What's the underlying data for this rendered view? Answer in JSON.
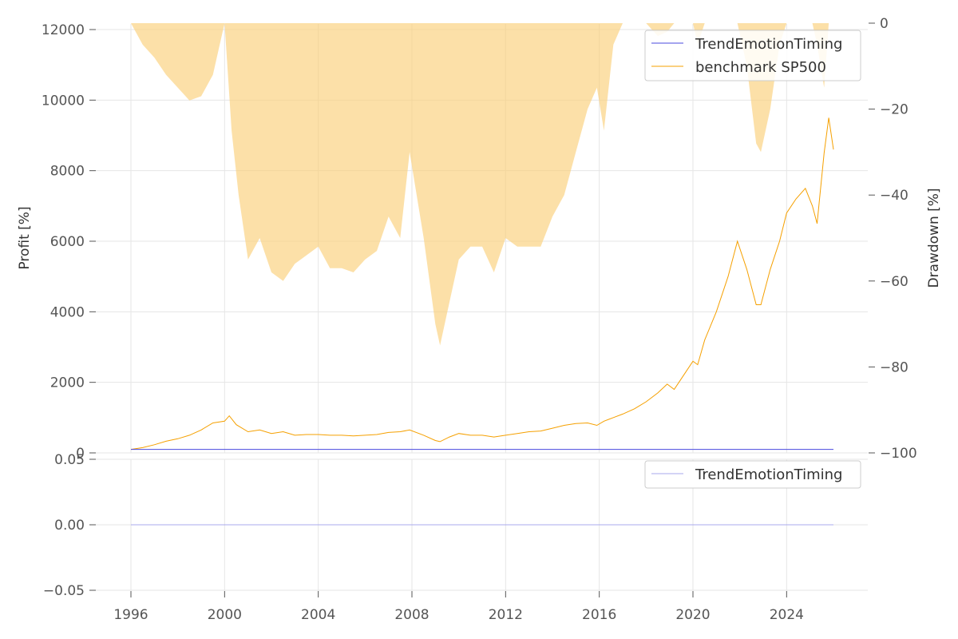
{
  "chart_data": [
    {
      "type": "line",
      "panel": "profit",
      "ylabel": "Profit [%]",
      "xlim": [
        1996,
        2026
      ],
      "ylim": [
        0,
        12000
      ],
      "x_ticks": [
        "1996",
        "2000",
        "2004",
        "2008",
        "2012",
        "2016",
        "2020",
        "2024"
      ],
      "y_ticks": [
        "0",
        "2000",
        "4000",
        "6000",
        "8000",
        "10000",
        "12000"
      ],
      "grid": true,
      "legend_position": "top-right",
      "series": [
        {
          "name": "TrendEmotionTiming",
          "color": "#4a4adf",
          "x": [
            1996.0,
            2026.0
          ],
          "y": [
            100,
            100
          ]
        },
        {
          "name": "benchmark SP500",
          "color": "#f5a000",
          "x": [
            1996.0,
            1996.5,
            1997.0,
            1997.5,
            1998.0,
            1998.5,
            1999.0,
            1999.5,
            2000.0,
            2000.2,
            2000.5,
            2001.0,
            2001.5,
            2002.0,
            2002.5,
            2003.0,
            2003.5,
            2004.0,
            2004.5,
            2005.0,
            2005.5,
            2006.0,
            2006.5,
            2007.0,
            2007.5,
            2007.9,
            2008.5,
            2009.0,
            2009.2,
            2009.6,
            2010.0,
            2010.5,
            2011.0,
            2011.5,
            2012.0,
            2012.5,
            2013.0,
            2013.5,
            2014.0,
            2014.5,
            2015.0,
            2015.5,
            2015.9,
            2016.2,
            2016.6,
            2017.0,
            2017.5,
            2018.0,
            2018.5,
            2018.9,
            2019.2,
            2019.6,
            2020.0,
            2020.2,
            2020.5,
            2021.0,
            2021.5,
            2021.9,
            2022.3,
            2022.7,
            2022.9,
            2023.3,
            2023.7,
            2024.0,
            2024.4,
            2024.8,
            2025.1,
            2025.3,
            2025.6,
            2025.8,
            2026.0
          ],
          "y": [
            100,
            150,
            230,
            330,
            400,
            500,
            650,
            850,
            900,
            1050,
            800,
            600,
            650,
            550,
            600,
            500,
            520,
            520,
            500,
            500,
            480,
            500,
            520,
            580,
            600,
            650,
            500,
            350,
            320,
            450,
            550,
            500,
            500,
            450,
            500,
            550,
            600,
            620,
            700,
            780,
            830,
            850,
            780,
            900,
            1000,
            1100,
            1250,
            1450,
            1700,
            1950,
            1800,
            2200,
            2600,
            2500,
            3200,
            4000,
            5000,
            6000,
            5200,
            4200,
            4200,
            5200,
            6000,
            6800,
            7200,
            7500,
            7000,
            6500,
            8500,
            9500,
            8600
          ]
        },
        {
          "name": "Drawdown",
          "color": "#fbd07a",
          "axis": "right",
          "ylabel": "Drawdown [%]",
          "ylim": [
            -100,
            0
          ],
          "y_ticks": [
            "0",
            "−20",
            "−40",
            "−60",
            "−80",
            "−100"
          ],
          "x": [
            1996.0,
            1996.5,
            1997.0,
            1997.5,
            1998.0,
            1998.5,
            1999.0,
            1999.5,
            2000.0,
            2000.3,
            2000.6,
            2001.0,
            2001.5,
            2002.0,
            2002.5,
            2003.0,
            2003.5,
            2004.0,
            2004.5,
            2005.0,
            2005.5,
            2006.0,
            2006.5,
            2007.0,
            2007.5,
            2007.9,
            2008.5,
            2009.0,
            2009.2,
            2009.6,
            2010.0,
            2010.5,
            2011.0,
            2011.5,
            2012.0,
            2012.5,
            2013.0,
            2013.5,
            2014.0,
            2014.5,
            2015.0,
            2015.5,
            2015.9,
            2016.2,
            2016.6,
            2017.0,
            2017.5,
            2018.0,
            2018.5,
            2018.9,
            2019.2,
            2019.6,
            2020.0,
            2020.2,
            2020.5,
            2021.0,
            2021.5,
            2021.9,
            2022.3,
            2022.7,
            2022.9,
            2023.3,
            2023.7,
            2024.0,
            2024.4,
            2024.8,
            2025.1,
            2025.3,
            2025.6,
            2025.8,
            2026.0
          ],
          "y": [
            0,
            -5,
            -8,
            -12,
            -15,
            -18,
            -17,
            -12,
            0,
            -25,
            -40,
            -55,
            -50,
            -58,
            -60,
            -56,
            -54,
            -52,
            -57,
            -57,
            -58,
            -55,
            -53,
            -45,
            -50,
            -30,
            -50,
            -70,
            -75,
            -65,
            -55,
            -52,
            -52,
            -58,
            -50,
            -52,
            -52,
            -52,
            -45,
            -40,
            -30,
            -20,
            -15,
            -25,
            -5,
            0,
            0,
            0,
            -3,
            -2,
            0,
            0,
            0,
            -5,
            0,
            0,
            0,
            0,
            -10,
            -28,
            -30,
            -20,
            -5,
            0,
            0,
            0,
            0,
            -5,
            -15,
            0,
            0
          ]
        }
      ]
    },
    {
      "type": "line",
      "panel": "secondary",
      "xlim": [
        1996,
        2026
      ],
      "ylim": [
        -0.05,
        0.05
      ],
      "y_ticks": [
        "0.05",
        "0.00",
        "−0.05"
      ],
      "x_ticks": [
        "1996",
        "2000",
        "2004",
        "2008",
        "2012",
        "2016",
        "2020",
        "2024"
      ],
      "grid": true,
      "legend_position": "top-right",
      "series": [
        {
          "name": "TrendEmotionTiming",
          "color": "#a8a8ee",
          "x": [
            1996.0,
            2026.0
          ],
          "y": [
            0.0,
            0.0
          ]
        }
      ]
    }
  ]
}
